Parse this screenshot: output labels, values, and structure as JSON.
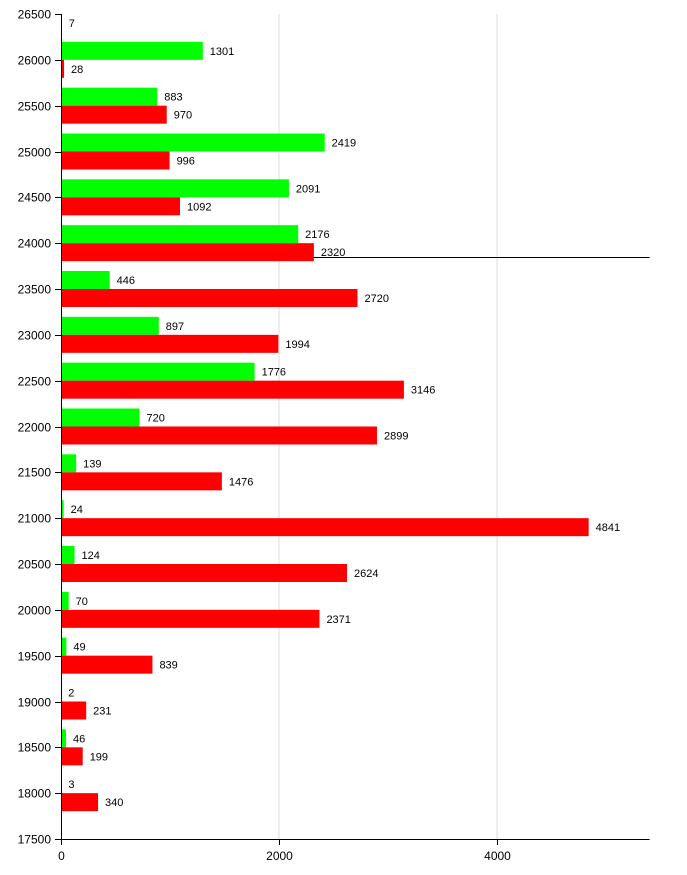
{
  "chart_data": {
    "type": "bar",
    "orientation": "horizontal",
    "grid": true,
    "xlim": [
      0,
      5400
    ],
    "ylim": [
      17500,
      26500
    ],
    "x_ticks": [
      "0",
      "2000",
      "4000"
    ],
    "y_ticks": [
      "17500",
      "18000",
      "18500",
      "19000",
      "19500",
      "20000",
      "20500",
      "21000",
      "21500",
      "22000",
      "22500",
      "23000",
      "23500",
      "24000",
      "24500",
      "25000",
      "25500",
      "26000",
      "26500"
    ],
    "reference_line": {
      "y": 23850
    },
    "categories": [
      18000,
      18500,
      19000,
      19500,
      20000,
      20500,
      21000,
      21500,
      22000,
      22500,
      23000,
      23500,
      24000,
      24500,
      25000,
      25500,
      26000,
      26500
    ],
    "series": [
      {
        "color": "#00ff00",
        "values": [
          3,
          46,
          2,
          49,
          70,
          124,
          24,
          139,
          720,
          1776,
          897,
          446,
          2176,
          2091,
          2419,
          883,
          1301,
          null
        ]
      },
      {
        "color": "#ff0000",
        "values": [
          340,
          199,
          231,
          839,
          2371,
          2624,
          4841,
          1476,
          2899,
          3146,
          1994,
          2720,
          2320,
          1092,
          996,
          970,
          28,
          7
        ]
      }
    ]
  }
}
